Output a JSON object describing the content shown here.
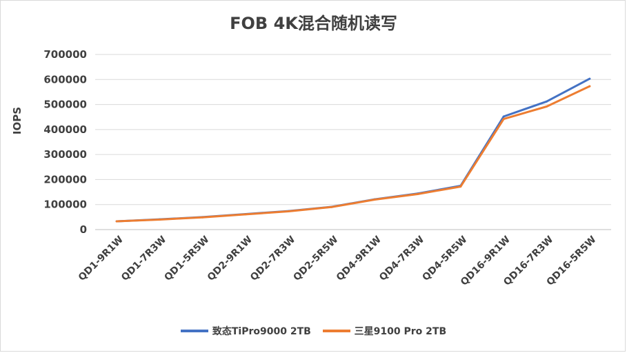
{
  "chart_data": {
    "type": "line",
    "title": "FOB 4K混合随机读写",
    "xlabel": "",
    "ylabel": "IOPS",
    "ylim": [
      0,
      700000
    ],
    "yticks": [
      0,
      100000,
      200000,
      300000,
      400000,
      500000,
      600000,
      700000
    ],
    "grid": true,
    "legend_position": "bottom",
    "categories": [
      "QD1-9R1W",
      "QD1-7R3W",
      "QD1-5R5W",
      "QD2-9R1W",
      "QD2-7R3W",
      "QD2-5R5W",
      "QD4-9R1W",
      "QD4-7R3W",
      "QD4-5R5W",
      "QD16-9R1W",
      "QD16-7R3W",
      "QD16-5R5W"
    ],
    "series": [
      {
        "name": "致态TiPro9000 2TB",
        "color": "#4472c4",
        "values": [
          33000,
          41000,
          50000,
          62000,
          74000,
          91000,
          121000,
          144000,
          175000,
          452000,
          512000,
          603000
        ]
      },
      {
        "name": "三星9100 Pro 2TB",
        "color": "#ed7d31",
        "values": [
          33000,
          40000,
          49000,
          61000,
          73000,
          90000,
          120000,
          142000,
          172000,
          442000,
          492000,
          573000
        ]
      }
    ]
  }
}
